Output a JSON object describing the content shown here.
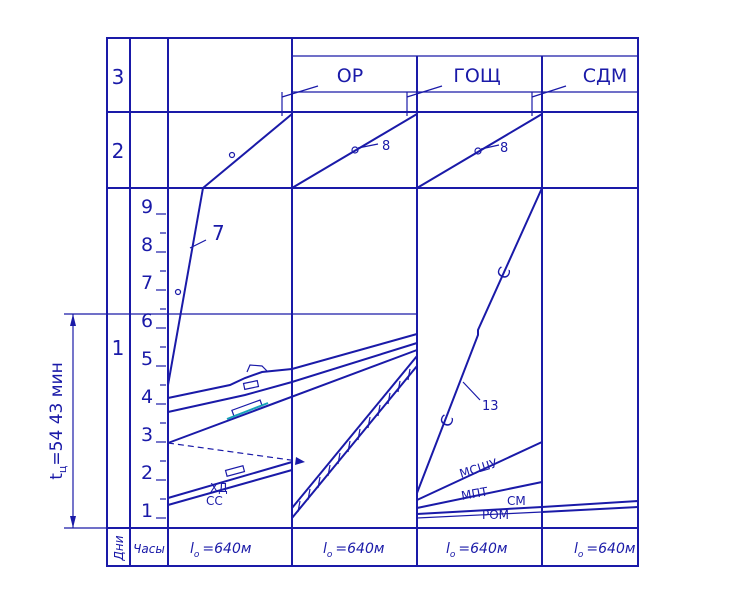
{
  "row_labels": {
    "row3": "3",
    "row2": "2",
    "row1": "1"
  },
  "columns": [
    {
      "header": "ОР",
      "length": "=640м",
      "length_symbol": "l",
      "length_sub": "o"
    },
    {
      "header": "ГОЩ",
      "length": "=640м",
      "length_symbol": "l",
      "length_sub": "o"
    },
    {
      "header": "СДМ",
      "length": "=640м",
      "length_symbol": "l",
      "length_sub": "o"
    }
  ],
  "first_column_length": {
    "symbol": "l",
    "sub": "o",
    "value": "=640м"
  },
  "footer": {
    "days": "Дни",
    "hours": "Часы"
  },
  "hours": [
    "1",
    "2",
    "3",
    "4",
    "5",
    "6",
    "7",
    "8",
    "9"
  ],
  "duration_label": "t",
  "duration_sub": "ц",
  "duration_value": "=54 43 мин",
  "line_labels": {
    "l7": "7",
    "l8a": "8",
    "l8b": "8",
    "l13": "13",
    "hd": "ХД",
    "ss": "СС",
    "mshu": "МСШУ",
    "mpt": "МПТ",
    "rom": "РОМ",
    "sm": "СМ",
    "c1": "С",
    "c2": "С"
  },
  "colors": {
    "ink": "#1a1aa8",
    "accent": "#17a2b8"
  }
}
